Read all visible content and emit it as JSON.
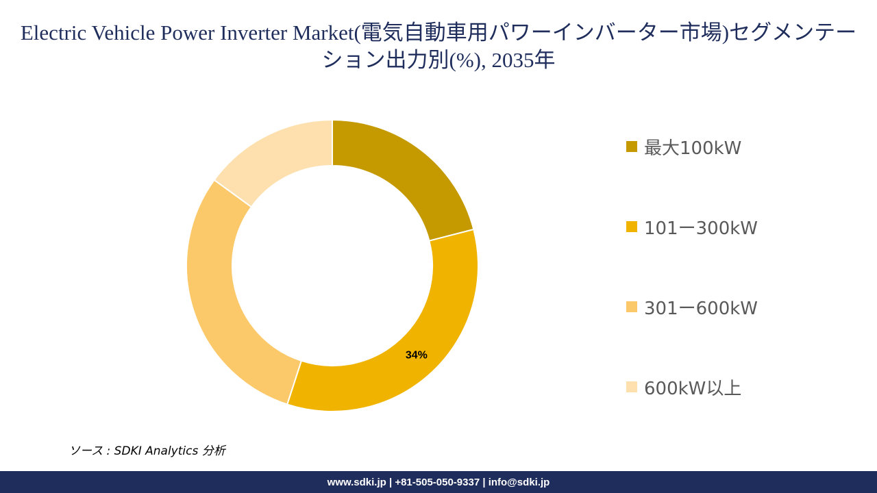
{
  "title": "Electric Vehicle Power Inverter Market(電気自動車用パワーインバーター市場)セグメンテーション出力別(%), 2035年",
  "chart_data": {
    "type": "pie",
    "donut": true,
    "start_angle_deg": 0,
    "direction": "clockwise",
    "categories": [
      "最大100kW",
      "101ー300kW",
      "301ー600kW",
      "600kW以上"
    ],
    "values": [
      21,
      34,
      30,
      15
    ],
    "colors": [
      "#c49a00",
      "#f0b400",
      "#fbc96a",
      "#fde0ae"
    ],
    "data_labels": [
      {
        "index": 1,
        "text": "34%"
      }
    ],
    "legend_position": "right"
  },
  "source": "ソース : SDKI Analytics 分析",
  "footer": "www.sdki.jp | +81-505-050-9337 | info@sdki.jp"
}
